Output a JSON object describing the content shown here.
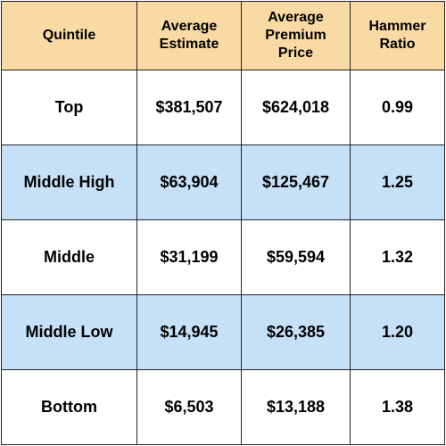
{
  "chart_data": {
    "type": "table",
    "columns": [
      "Quintile",
      "Average Estimate",
      "Average Premium Price",
      "Hammer Ratio"
    ],
    "header_lines": [
      [
        "Quintile"
      ],
      [
        "Average",
        "Estimate"
      ],
      [
        "Average",
        "Premium",
        "Price"
      ],
      [
        "Hammer",
        "Ratio"
      ]
    ],
    "rows": [
      [
        "Top",
        "$381,507",
        "$624,018",
        "0.99"
      ],
      [
        "Middle High",
        "$63,904",
        "$125,467",
        "1.25"
      ],
      [
        "Middle",
        "$31,199",
        "$59,594",
        "1.32"
      ],
      [
        "Middle Low",
        "$14,945",
        "$26,385",
        "1.20"
      ],
      [
        "Bottom",
        "$6,503",
        "$13,188",
        "1.38"
      ]
    ]
  },
  "colors": {
    "header_bg": "#f9d9a4",
    "stripe_bg": "#c6e0f7",
    "row_bg": "#ffffff",
    "border": "#222222",
    "text": "#000000"
  }
}
